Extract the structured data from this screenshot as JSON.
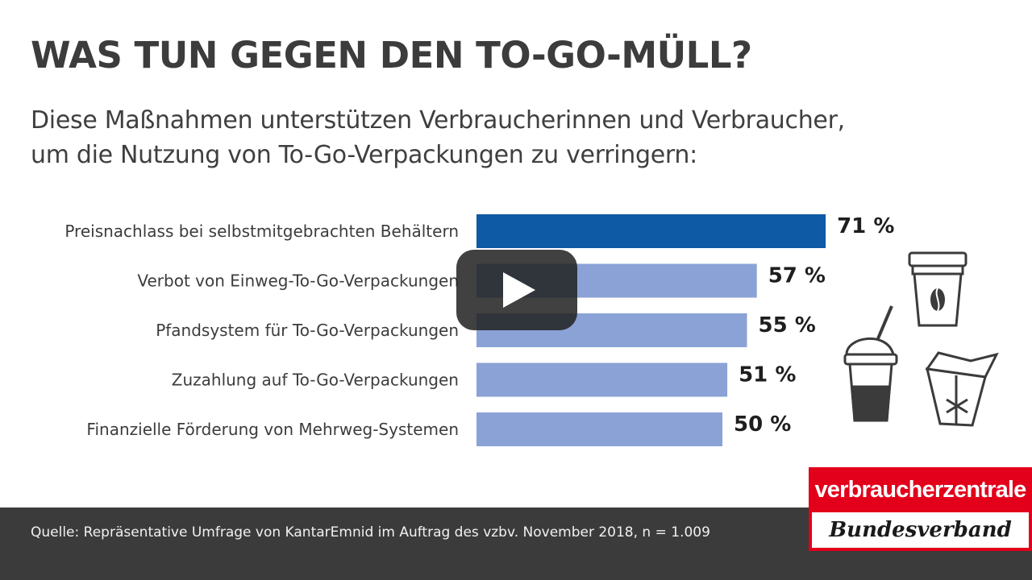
{
  "title": "WAS TUN GEGEN DEN TO-GO-MÜLL?",
  "subtitle_line1": "Diese Maßnahmen unterstützen Verbraucherinnen und Verbraucher,",
  "subtitle_line2": "um die Nutzung von To-Go-Verpackungen zu verringern:",
  "chart_data": {
    "type": "bar",
    "orientation": "horizontal",
    "categories": [
      "Preisnachlass bei selbstmitgebrachten Behältern",
      "Verbot von Einweg-To-Go-Verpackungen",
      "Pfandsystem für To-Go-Verpackungen",
      "Zuzahlung auf To-Go-Verpackungen",
      "Finanzielle Förderung von Mehrweg-Systemen"
    ],
    "values": [
      71,
      57,
      55,
      51,
      50
    ],
    "value_labels": [
      "71 %",
      "57 %",
      "55 %",
      "51 %",
      "50 %"
    ],
    "unit": "%",
    "xlim": [
      0,
      100
    ],
    "grid": false,
    "colors": {
      "highlight": "#0f5aa5",
      "default": "#8aa2d6"
    }
  },
  "icons": [
    "coffee-cup-icon",
    "smoothie-cup-icon",
    "takeout-box-icon"
  ],
  "footer": {
    "source": "Quelle: Repräsentative Umfrage von KantarEmnid im Auftrag des vzbv. November 2018, n = 1.009"
  },
  "logo": {
    "top": "verbraucherzentrale",
    "bottom": "Bundesverband"
  },
  "video": {
    "play_icon": "play-icon"
  }
}
